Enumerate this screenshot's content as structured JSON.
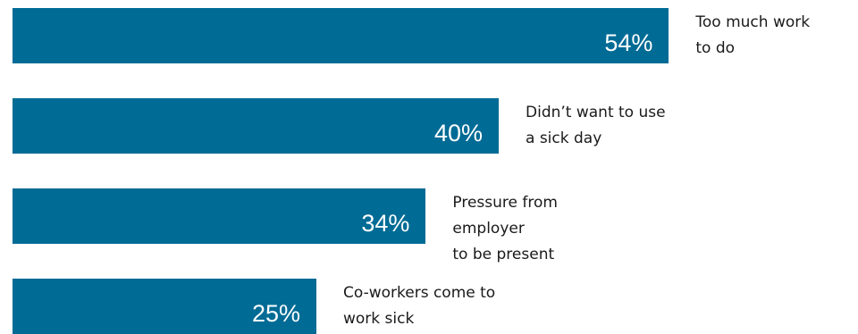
{
  "colors": {
    "bar": "#006B95",
    "value_text": "#ffffff",
    "label_text": "#1a1a1a"
  },
  "chart_data": {
    "type": "bar",
    "orientation": "horizontal",
    "categories": [
      "Too much work\nto do",
      "Didn’t want to use\na sick day",
      "Pressure from employer\nto be present",
      "Co-workers come to\nwork sick"
    ],
    "values": [
      54,
      40,
      34,
      25
    ],
    "value_labels": [
      "54%",
      "40%",
      "34%",
      "25%"
    ],
    "unit": "%",
    "grid": false,
    "legend": "none"
  }
}
